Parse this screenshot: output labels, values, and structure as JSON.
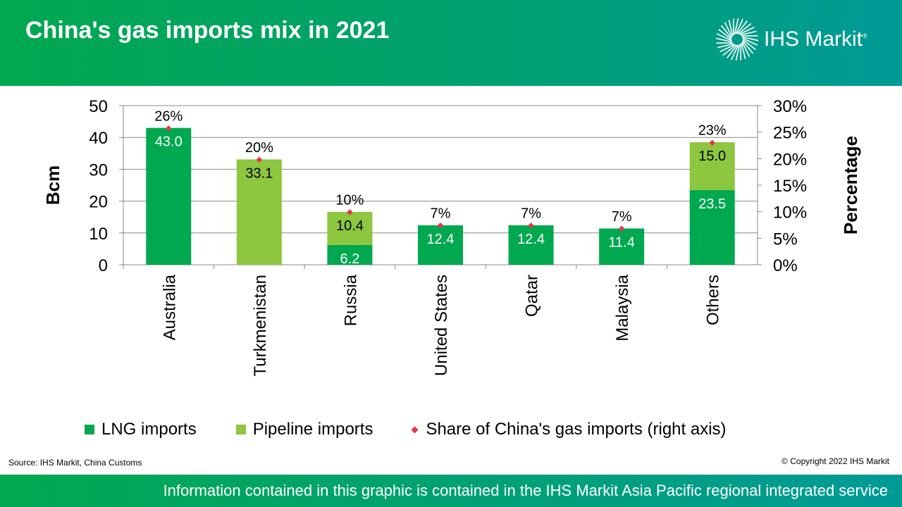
{
  "header": {
    "title": "China's gas imports mix in 2021",
    "logo_text": "IHS Markit"
  },
  "chart_data": {
    "type": "bar",
    "stacked": true,
    "title": "China's gas imports mix in 2021",
    "categories": [
      "Australia",
      "Turkmenistan",
      "Russia",
      "United States",
      "Qatar",
      "Malaysia",
      "Others"
    ],
    "series": [
      {
        "name": "LNG imports",
        "values": [
          43.0,
          0,
          6.2,
          12.4,
          12.4,
          11.4,
          23.5
        ],
        "labels": [
          "43.0",
          "",
          "6.2",
          "12.4",
          "12.4",
          "11.4",
          "23.5"
        ],
        "color": "#00a84f"
      },
      {
        "name": "Pipeline imports",
        "values": [
          0,
          33.1,
          10.4,
          0,
          0,
          0,
          15.0
        ],
        "labels": [
          "",
          "33.1",
          "10.4",
          "",
          "",
          "",
          "15.0"
        ],
        "color": "#8dc63f"
      },
      {
        "name": "Share of China's gas imports (right axis)",
        "type": "scatter",
        "axis": "right",
        "values": [
          25.7,
          19.8,
          9.9,
          7.4,
          7.4,
          6.8,
          23.0
        ],
        "labels": [
          "26%",
          "20%",
          "10%",
          "7%",
          "7%",
          "7%",
          "23%"
        ],
        "color": "#e8334a"
      }
    ],
    "ylabel": "Bcm",
    "ylim": [
      0,
      50
    ],
    "yticks": [
      "0",
      "10",
      "20",
      "30",
      "40",
      "50"
    ],
    "y2label": "Percentage",
    "y2lim": [
      0,
      30
    ],
    "y2ticks": [
      "0%",
      "5%",
      "10%",
      "15%",
      "20%",
      "25%",
      "30%"
    ],
    "grid": true,
    "legend": "bottom"
  },
  "footer": {
    "source": "Source: IHS Markit, China Customs",
    "copyright": "© Copyright  2022 IHS Markit",
    "note": "Information contained in this graphic is contained in the IHS Markit Asia Pacific regional integrated service"
  }
}
